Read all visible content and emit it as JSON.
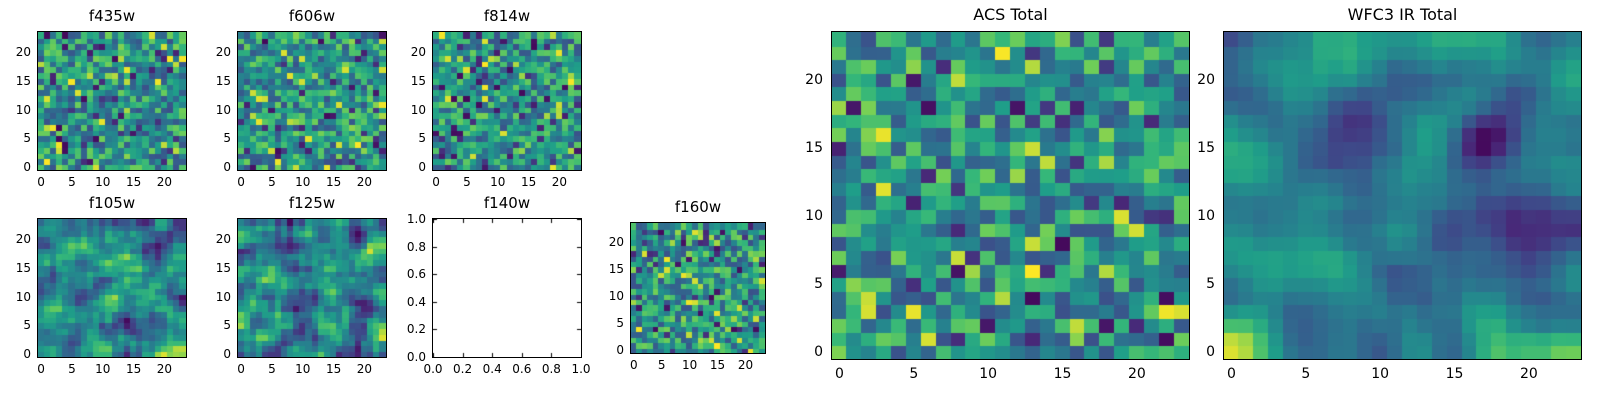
{
  "figure": {
    "background_color": "#ffffff",
    "text_color": "#000000",
    "colormap": "viridis",
    "colormap_stops": [
      "#440154",
      "#482878",
      "#3e4989",
      "#31688e",
      "#26828e",
      "#1f9e89",
      "#35b779",
      "#6ece58",
      "#fde725"
    ]
  },
  "chart_data": [
    {
      "id": "f435w",
      "type": "heatmap",
      "title": "f435w",
      "grid": [
        24,
        24
      ],
      "xlim": [
        -0.5,
        23.5
      ],
      "ylim": [
        -0.5,
        23.5
      ],
      "x_ticks": [
        0,
        5,
        10,
        15,
        20
      ],
      "x_tick_labels": [
        "0",
        "5",
        "10",
        "15",
        "20"
      ],
      "y_ticks": [
        0,
        5,
        10,
        15,
        20
      ],
      "y_tick_labels": [
        "0",
        "5",
        "10",
        "15",
        "20"
      ],
      "colormap": "viridis",
      "appearance": "unsmoothed random speckle with sparse dark-purple and bright-yellow pixels",
      "seed": 4351,
      "smooth": 0
    },
    {
      "id": "f606w",
      "type": "heatmap",
      "title": "f606w",
      "grid": [
        24,
        24
      ],
      "xlim": [
        -0.5,
        23.5
      ],
      "ylim": [
        -0.5,
        23.5
      ],
      "x_ticks": [
        0,
        5,
        10,
        15,
        20
      ],
      "x_tick_labels": [
        "0",
        "5",
        "10",
        "15",
        "20"
      ],
      "y_ticks": [
        0,
        5,
        10,
        15,
        20
      ],
      "y_tick_labels": [
        "0",
        "5",
        "10",
        "15",
        "20"
      ],
      "colormap": "viridis",
      "appearance": "unsmoothed random speckle with sparse dark-purple and bright-yellow pixels",
      "seed": 6061,
      "smooth": 0
    },
    {
      "id": "f814w",
      "type": "heatmap",
      "title": "f814w",
      "grid": [
        24,
        24
      ],
      "xlim": [
        -0.5,
        23.5
      ],
      "ylim": [
        -0.5,
        23.5
      ],
      "x_ticks": [
        0,
        5,
        10,
        15,
        20
      ],
      "x_tick_labels": [
        "0",
        "5",
        "10",
        "15",
        "20"
      ],
      "y_ticks": [
        0,
        5,
        10,
        15,
        20
      ],
      "y_tick_labels": [
        "0",
        "5",
        "10",
        "15",
        "20"
      ],
      "colormap": "viridis",
      "appearance": "unsmoothed random speckle with sparse dark-purple and bright-yellow pixels",
      "seed": 8141,
      "smooth": 0
    },
    {
      "id": "f105w",
      "type": "heatmap",
      "title": "f105w",
      "grid": [
        24,
        24
      ],
      "xlim": [
        -0.5,
        23.5
      ],
      "ylim": [
        -0.5,
        23.5
      ],
      "x_ticks": [
        0,
        5,
        10,
        15,
        20
      ],
      "x_tick_labels": [
        "0",
        "5",
        "10",
        "15",
        "20"
      ],
      "y_ticks": [
        0,
        5,
        10,
        15,
        20
      ],
      "y_tick_labels": [
        "0",
        "5",
        "10",
        "15",
        "20"
      ],
      "colormap": "viridis",
      "appearance": "mildly correlated noise with yellow clumps and a few dark pixels",
      "seed": 1051,
      "smooth": 1
    },
    {
      "id": "f125w",
      "type": "heatmap",
      "title": "f125w",
      "grid": [
        24,
        24
      ],
      "xlim": [
        -0.5,
        23.5
      ],
      "ylim": [
        -0.5,
        23.5
      ],
      "x_ticks": [
        0,
        5,
        10,
        15,
        20
      ],
      "x_tick_labels": [
        "0",
        "5",
        "10",
        "15",
        "20"
      ],
      "y_ticks": [
        0,
        5,
        10,
        15,
        20
      ],
      "y_tick_labels": [
        "0",
        "5",
        "10",
        "15",
        "20"
      ],
      "colormap": "viridis",
      "appearance": "mildly correlated noise with central yellow clump",
      "seed": 1251,
      "smooth": 1
    },
    {
      "id": "f140w",
      "type": "empty",
      "title": "f140w",
      "xlim": [
        0,
        1
      ],
      "ylim": [
        0,
        1
      ],
      "x_ticks": [
        0,
        0.2,
        0.4,
        0.6,
        0.8,
        1
      ],
      "x_tick_labels": [
        "0.0",
        "0.2",
        "0.4",
        "0.6",
        "0.8",
        "1.0"
      ],
      "y_ticks": [
        0,
        0.2,
        0.4,
        0.6,
        0.8,
        1
      ],
      "y_tick_labels": [
        "0.0",
        "0.2",
        "0.4",
        "0.6",
        "0.8",
        "1.0"
      ],
      "appearance": "empty axes, no data plotted"
    },
    {
      "id": "f160w",
      "type": "heatmap",
      "title": "f160w",
      "grid": [
        24,
        24
      ],
      "xlim": [
        -0.5,
        23.5
      ],
      "ylim": [
        -0.5,
        23.5
      ],
      "x_ticks": [
        0,
        5,
        10,
        15,
        20
      ],
      "x_tick_labels": [
        "0",
        "5",
        "10",
        "15",
        "20"
      ],
      "y_ticks": [
        0,
        5,
        10,
        15,
        20
      ],
      "y_tick_labels": [
        "0",
        "5",
        "10",
        "15",
        "20"
      ],
      "colormap": "viridis",
      "appearance": "unsmoothed random speckle with sparse dark-purple pixels",
      "seed": 1601,
      "smooth": 0
    },
    {
      "id": "acs_total",
      "type": "heatmap",
      "title": "ACS Total",
      "grid": [
        24,
        24
      ],
      "xlim": [
        -0.5,
        23.5
      ],
      "ylim": [
        -0.5,
        23.5
      ],
      "x_ticks": [
        0,
        5,
        10,
        15,
        20
      ],
      "x_tick_labels": [
        "0",
        "5",
        "10",
        "15",
        "20"
      ],
      "y_ticks": [
        0,
        5,
        10,
        15,
        20
      ],
      "y_tick_labels": [
        "0",
        "5",
        "10",
        "15",
        "20"
      ],
      "colormap": "viridis",
      "appearance": "random speckle with scattered dark-purple and bright-yellow cells",
      "seed": 7001,
      "smooth": 0
    },
    {
      "id": "wfc3_ir_total",
      "type": "heatmap",
      "title": "WFC3 IR Total",
      "grid": [
        24,
        24
      ],
      "xlim": [
        -0.5,
        23.5
      ],
      "ylim": [
        -0.5,
        23.5
      ],
      "x_ticks": [
        0,
        5,
        10,
        15,
        20
      ],
      "x_tick_labels": [
        "0",
        "5",
        "10",
        "15",
        "20"
      ],
      "y_ticks": [
        0,
        5,
        10,
        15,
        20
      ],
      "y_tick_labels": [
        "0",
        "5",
        "10",
        "15",
        "20"
      ],
      "colormap": "viridis",
      "appearance": "smooth correlated noise, large yellow region center-right, dark purple blobs at edges",
      "seed": 9002,
      "smooth": 2
    }
  ]
}
